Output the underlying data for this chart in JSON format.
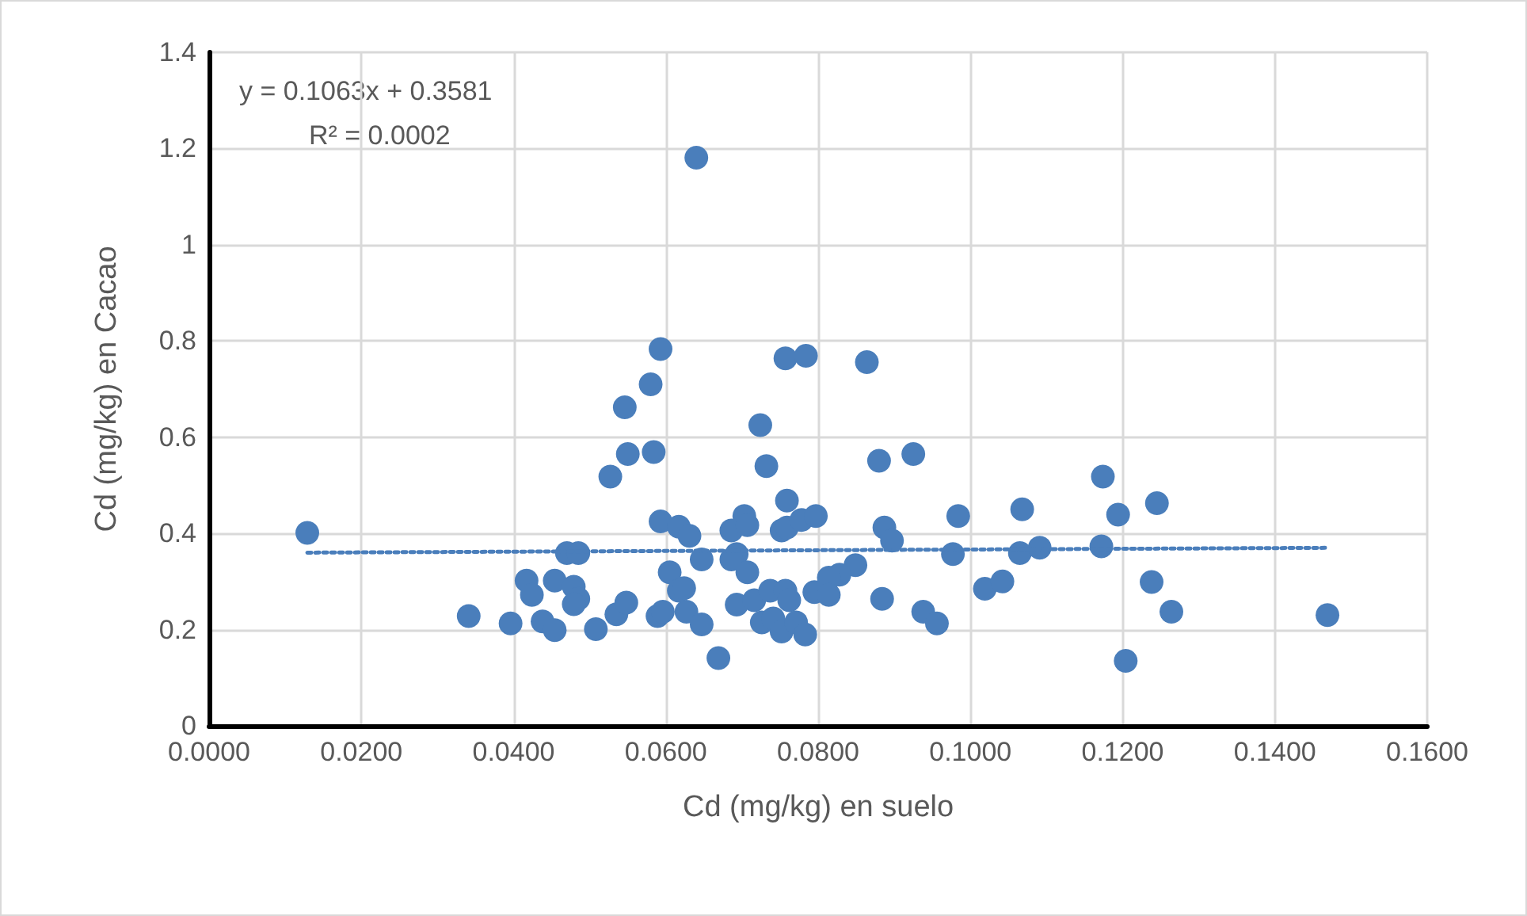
{
  "chart_data": {
    "type": "scatter",
    "xlabel": "Cd (mg/kg) en suelo",
    "ylabel": "Cd (mg/kg) en Cacao",
    "annotations": [
      "y = 0.1063x + 0.3581",
      "R² = 0.0002"
    ],
    "xlim": [
      0,
      0.16
    ],
    "xticks": [
      {
        "value": 0,
        "label": "0.0000"
      },
      {
        "value": 0.02,
        "label": "0.0200"
      },
      {
        "value": 0.04,
        "label": "0.0400"
      },
      {
        "value": 0.06,
        "label": "0.0600"
      },
      {
        "value": 0.08,
        "label": "0.0800"
      },
      {
        "value": 0.1,
        "label": "0.1000"
      },
      {
        "value": 0.12,
        "label": "0.1200"
      },
      {
        "value": 0.14,
        "label": "0.1400"
      },
      {
        "value": 0.16,
        "label": "0.1600"
      }
    ],
    "ylim": [
      0,
      1.4
    ],
    "yticks": [
      0,
      0.2,
      0.4,
      0.6,
      0.8,
      1,
      1.2,
      1.4
    ],
    "grid": true,
    "marker": "circle",
    "series": [
      {
        "color": "#4a7ebb",
        "x": [
          0.0129,
          0.0341,
          0.0396,
          0.0438,
          0.0454,
          0.0417,
          0.0424,
          0.0454,
          0.047,
          0.0485,
          0.0479,
          0.0485,
          0.0479,
          0.0508,
          0.0535,
          0.0548,
          0.0527,
          0.0546,
          0.055,
          0.058,
          0.0593,
          0.0584,
          0.0593,
          0.0617,
          0.0631,
          0.0647,
          0.0605,
          0.0617,
          0.0624,
          0.0627,
          0.0647,
          0.0589,
          0.0596,
          0.064,
          0.0669,
          0.0686,
          0.0703,
          0.0707,
          0.0693,
          0.0686,
          0.0707,
          0.0693,
          0.0716,
          0.0737,
          0.0757,
          0.0762,
          0.0726,
          0.0741,
          0.0752,
          0.0771,
          0.0783,
          0.0724,
          0.0732,
          0.0759,
          0.0752,
          0.0759,
          0.0778,
          0.0797,
          0.0757,
          0.0784,
          0.0795,
          0.0864,
          0.088,
          0.0925,
          0.0887,
          0.0897,
          0.0849,
          0.0828,
          0.0814,
          0.0814,
          0.0884,
          0.0938,
          0.0956,
          0.0984,
          0.0977,
          0.1019,
          0.1042,
          0.1068,
          0.1065,
          0.1091,
          0.1174,
          0.1172,
          0.1194,
          0.1245,
          0.1238,
          0.1264,
          0.1204,
          0.1469
        ],
        "values": [
          0.401,
          0.228,
          0.213,
          0.217,
          0.199,
          0.302,
          0.272,
          0.302,
          0.359,
          0.359,
          0.289,
          0.264,
          0.253,
          0.201,
          0.232,
          0.256,
          0.518,
          0.662,
          0.565,
          0.71,
          0.783,
          0.569,
          0.425,
          0.414,
          0.395,
          0.346,
          0.319,
          0.281,
          0.286,
          0.237,
          0.211,
          0.228,
          0.237,
          1.181,
          0.141,
          0.406,
          0.436,
          0.417,
          0.357,
          0.346,
          0.319,
          0.252,
          0.261,
          0.281,
          0.281,
          0.261,
          0.215,
          0.223,
          0.196,
          0.215,
          0.19,
          0.625,
          0.54,
          0.468,
          0.406,
          0.412,
          0.428,
          0.436,
          0.764,
          0.769,
          0.278,
          0.756,
          0.551,
          0.565,
          0.412,
          0.385,
          0.334,
          0.314,
          0.308,
          0.272,
          0.264,
          0.237,
          0.213,
          0.436,
          0.357,
          0.285,
          0.3,
          0.45,
          0.359,
          0.37,
          0.518,
          0.373,
          0.439,
          0.463,
          0.299,
          0.237,
          0.135,
          0.23
        ]
      },
      {
        "type": "line",
        "color": "#4a7ebb",
        "line_style": "dotted",
        "marker": "none",
        "x": [
          0.0129,
          0.1469
        ],
        "values": [
          0.36,
          0.37
        ]
      }
    ]
  }
}
